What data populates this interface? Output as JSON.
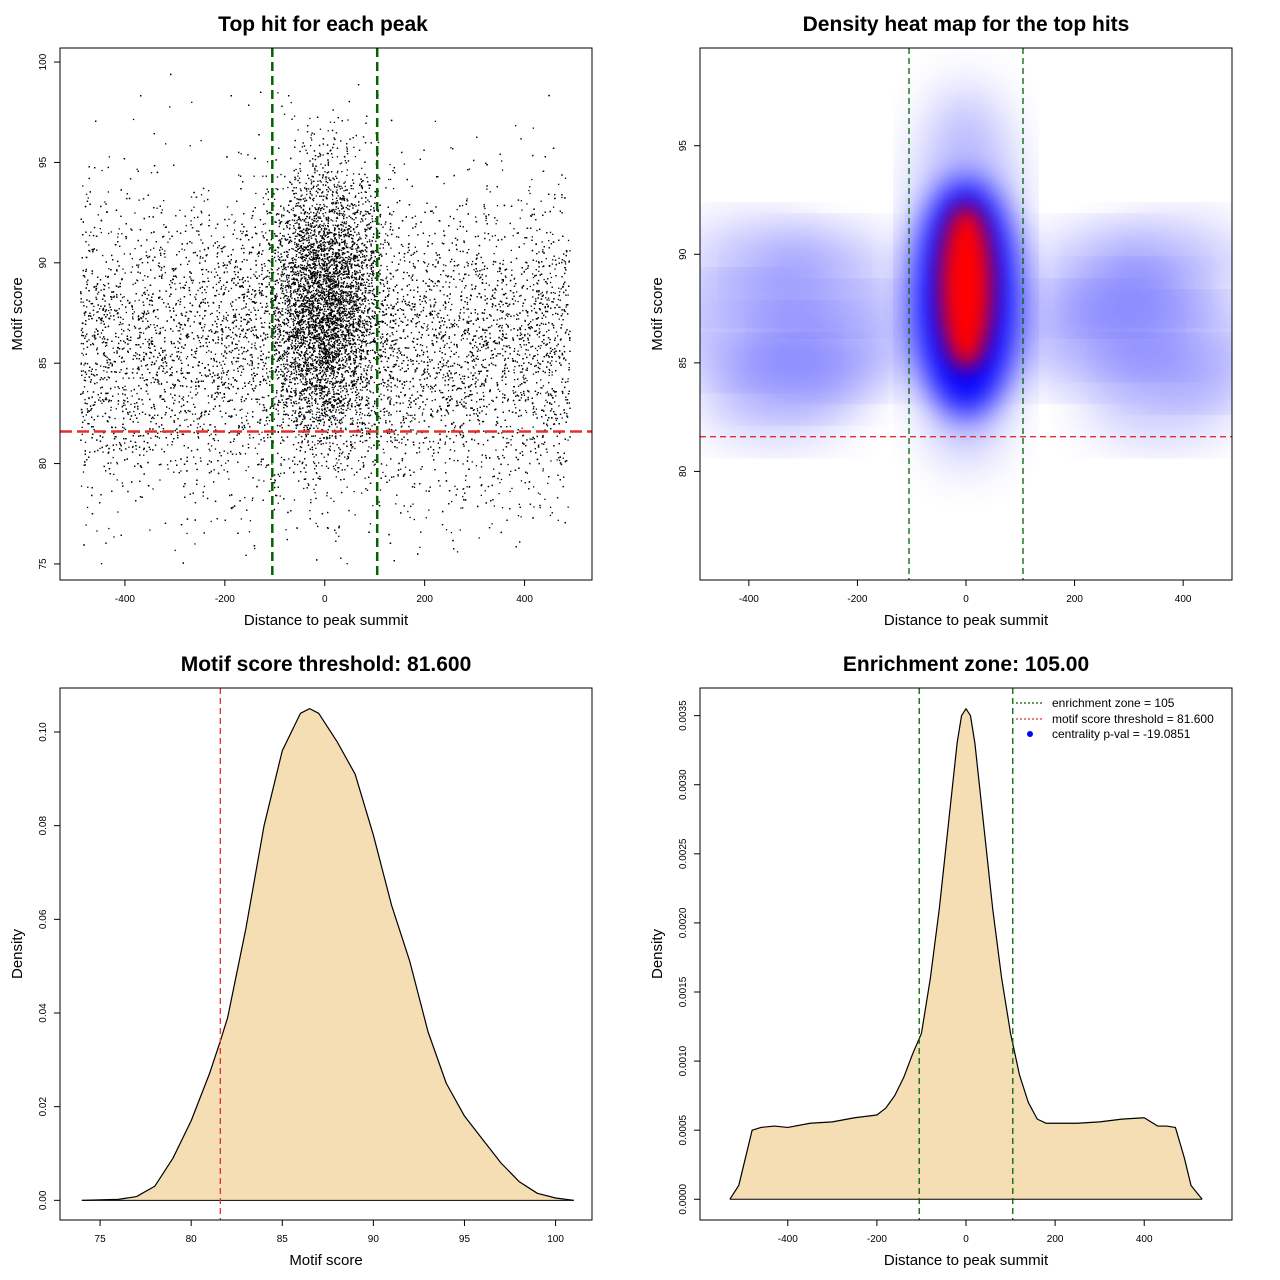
{
  "chart_data": [
    {
      "type": "scatter",
      "title": "Top hit for each peak",
      "xlabel": "Distance to peak summit",
      "ylabel": "Motif score",
      "xlim": [
        -530,
        535
      ],
      "ylim": [
        74.2,
        100.7
      ],
      "xticks": [
        "-400",
        "-200",
        "0",
        "200",
        "400"
      ],
      "yticks": [
        "75",
        "80",
        "85",
        "90",
        "95",
        "100"
      ],
      "vlines": [
        -105,
        105
      ],
      "hline": 81.6,
      "vline_color": "#006400",
      "hline_color": "#e03030",
      "point_color": "#000000",
      "points_description": {
        "background_x_range": [
          -490,
          490
        ],
        "background_score_center": 85.8,
        "central_cluster_x_center": 0,
        "central_cluster_score_center": 88
      }
    },
    {
      "type": "heatmap",
      "title": "Density heat map for the top hits",
      "xlabel": "Distance to peak summit",
      "ylabel": "Motif score",
      "xlim": [
        -490,
        490
      ],
      "ylim": [
        75,
        99.5
      ],
      "xticks": [
        "-400",
        "-200",
        "0",
        "200",
        "400"
      ],
      "yticks": [
        "80",
        "85",
        "90",
        "95"
      ],
      "vlines": [
        -105,
        105
      ],
      "hline": 81.6,
      "colors": [
        "#ffffff",
        "#0000ff",
        "#ff0000"
      ],
      "hotspot": {
        "x": 0,
        "y": 88.5
      }
    },
    {
      "type": "area",
      "title": "Motif score threshold: 81.600",
      "xlabel": "Motif score",
      "ylabel": "Density",
      "xlim": [
        72.8,
        102.0
      ],
      "ylim": [
        -0.0042,
        0.1094
      ],
      "xticks": [
        "75",
        "80",
        "85",
        "90",
        "95",
        "100"
      ],
      "yticks": [
        "0.00",
        "0.02",
        "0.04",
        "0.06",
        "0.08",
        "0.10"
      ],
      "vline": 81.6,
      "fill": "#f5deb3",
      "x": [
        74,
        76,
        77,
        78,
        79,
        80,
        81,
        81.6,
        82,
        83,
        84,
        85,
        86,
        86.5,
        87,
        88,
        89,
        90,
        91,
        92,
        93,
        94,
        95,
        96,
        97,
        98,
        99,
        100,
        101
      ],
      "y": [
        0,
        0.0002,
        0.0008,
        0.003,
        0.009,
        0.017,
        0.027,
        0.034,
        0.039,
        0.058,
        0.08,
        0.096,
        0.104,
        0.105,
        0.104,
        0.098,
        0.091,
        0.078,
        0.063,
        0.051,
        0.036,
        0.025,
        0.018,
        0.013,
        0.008,
        0.004,
        0.0015,
        0.0005,
        0
      ]
    },
    {
      "type": "area",
      "title": "Enrichment zone: 105.00",
      "xlabel": "Distance to peak summit",
      "ylabel": "Density",
      "xlim": [
        -597,
        597
      ],
      "ylim": [
        -0.00015,
        0.0037
      ],
      "xticks": [
        "-400",
        "-200",
        "0",
        "200",
        "400"
      ],
      "yticks": [
        "0.0000",
        "0.0005",
        "0.0010",
        "0.0015",
        "0.0020",
        "0.0025",
        "0.0030",
        "0.0035"
      ],
      "vlines": [
        -105,
        105
      ],
      "fill": "#f5deb3",
      "legend": [
        {
          "label": "enrichment zone = 105",
          "color": "#006400"
        },
        {
          "label": "motif score threshold = 81.600",
          "color": "#e03030"
        },
        {
          "label": "centrality p-val = -19.0851",
          "color": "#0000ff"
        }
      ],
      "x": [
        -530,
        -510,
        -495,
        -480,
        -460,
        -430,
        -400,
        -350,
        -300,
        -250,
        -200,
        -180,
        -160,
        -140,
        -120,
        -100,
        -80,
        -60,
        -40,
        -20,
        -10,
        0,
        10,
        20,
        40,
        60,
        80,
        100,
        120,
        140,
        160,
        180,
        200,
        250,
        300,
        350,
        400,
        430,
        450,
        470,
        490,
        505,
        530
      ],
      "y": [
        0,
        0.0001,
        0.0003,
        0.0005,
        0.00052,
        0.00053,
        0.00052,
        0.00055,
        0.00056,
        0.00059,
        0.00061,
        0.00066,
        0.00075,
        0.00088,
        0.00105,
        0.0012,
        0.0016,
        0.0021,
        0.0027,
        0.0033,
        0.0035,
        0.00355,
        0.0035,
        0.0033,
        0.0027,
        0.0021,
        0.0016,
        0.0012,
        0.0009,
        0.0007,
        0.00058,
        0.00055,
        0.00055,
        0.00055,
        0.00056,
        0.00058,
        0.00059,
        0.00053,
        0.00053,
        0.00052,
        0.0003,
        0.0001,
        0
      ]
    }
  ]
}
